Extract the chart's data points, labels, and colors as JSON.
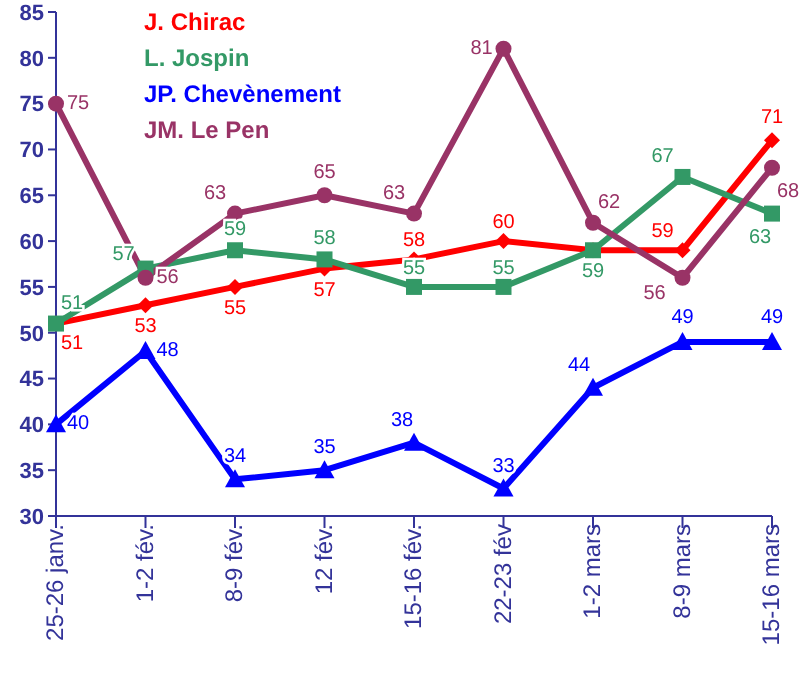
{
  "chart_data": {
    "type": "line",
    "categories": [
      "25-26 janv.",
      "1-2 fév.",
      "8-9 fév.",
      "12 fév.",
      "15-16 fév.",
      "22-23 fév",
      "1-2 mars",
      "8-9 mars",
      "15-16 mars"
    ],
    "series": [
      {
        "name": "J. Chirac",
        "color": "#ff0000",
        "marker": "diamond",
        "values": [
          51,
          53,
          55,
          57,
          58,
          60,
          59,
          59,
          71
        ],
        "value_labels": [
          "51",
          "53",
          "55",
          "57",
          "58",
          "60",
          null,
          "59",
          "71"
        ]
      },
      {
        "name": "L. Jospin",
        "color": "#339966",
        "marker": "square",
        "values": [
          51,
          57,
          59,
          58,
          55,
          55,
          59,
          67,
          63
        ],
        "value_labels": [
          "51",
          "57",
          "59",
          "58",
          "55",
          "55",
          "59",
          "67",
          "63"
        ]
      },
      {
        "name": "JP. Chevènement",
        "color": "#0000ff",
        "marker": "triangle",
        "values": [
          40,
          48,
          34,
          35,
          38,
          33,
          44,
          49,
          49
        ],
        "value_labels": [
          "40",
          "48",
          "34",
          "35",
          "38",
          "33",
          "44",
          "49",
          "49"
        ]
      },
      {
        "name": "JM. Le Pen",
        "color": "#993366",
        "marker": "circle",
        "values": [
          75,
          56,
          63,
          65,
          63,
          81,
          62,
          56,
          68
        ],
        "value_labels": [
          "75",
          "56",
          "63",
          "65",
          "63",
          "81",
          "62",
          "56",
          "68"
        ]
      }
    ],
    "ylim": [
      30,
      85
    ],
    "yticks": [
      30,
      35,
      40,
      45,
      50,
      55,
      60,
      65,
      70,
      75,
      80,
      85
    ],
    "legend": "top left"
  }
}
